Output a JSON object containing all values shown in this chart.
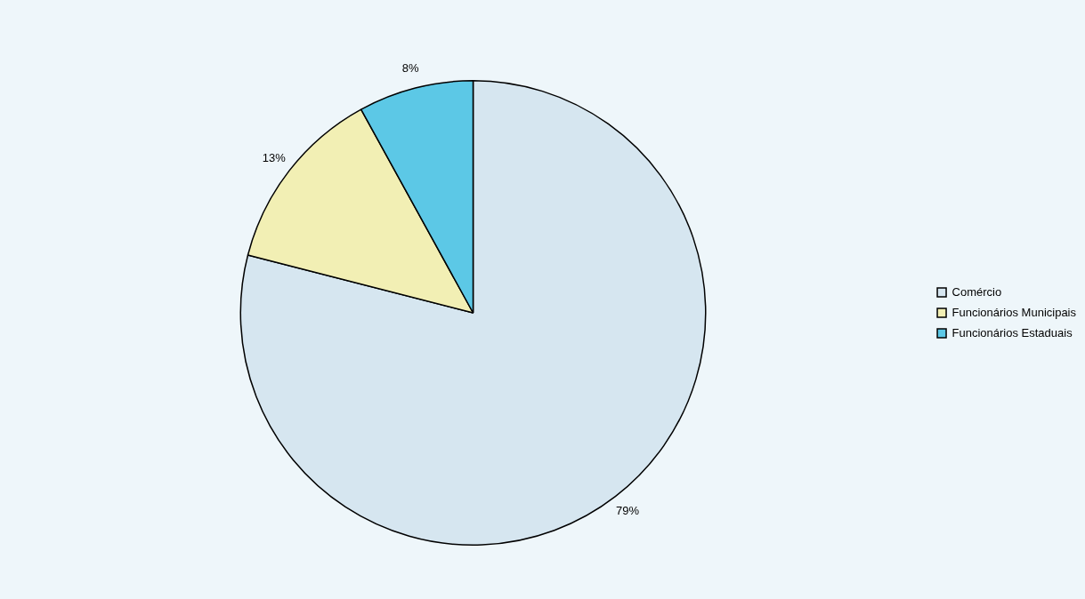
{
  "chart_data": {
    "type": "pie",
    "categories": [
      "Comércio",
      "Funcionários Municipais",
      "Funcionários Estaduais"
    ],
    "values": [
      79,
      13,
      8
    ],
    "colors": [
      "#d6e6f0",
      "#f2efb4",
      "#5cc8e6"
    ],
    "value_labels": [
      "79%",
      "13%",
      "8%"
    ],
    "legend": "right"
  }
}
